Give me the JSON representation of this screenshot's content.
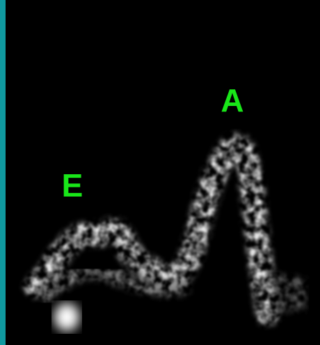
{
  "labels": {
    "e_wave": "E",
    "a_wave": "A"
  }
}
